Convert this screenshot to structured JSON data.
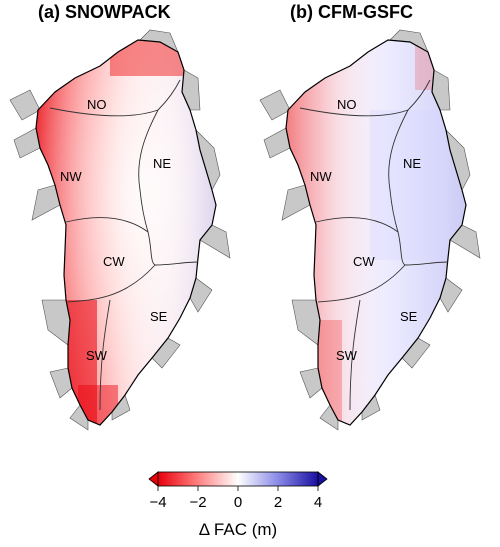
{
  "panels": [
    {
      "title": "(a) SNOWPACK",
      "regions": [
        "NO",
        "NE",
        "NW",
        "CW",
        "SE",
        "SW"
      ]
    },
    {
      "title": "(b) CFM-GSFC",
      "regions": [
        "NO",
        "NE",
        "NW",
        "CW",
        "SE",
        "SW"
      ]
    }
  ],
  "colorbar": {
    "label": "Δ FAC (m)",
    "ticks": [
      "−4",
      "−2",
      "0",
      "2",
      "4"
    ],
    "min": -4,
    "max": 4,
    "colors": {
      "low": "#e8000b",
      "mid": "#ffffff",
      "high": "#1a10a0"
    }
  },
  "colors": {
    "land": "#c8c8c8",
    "coast": "#000000",
    "divide": "#333333"
  }
}
